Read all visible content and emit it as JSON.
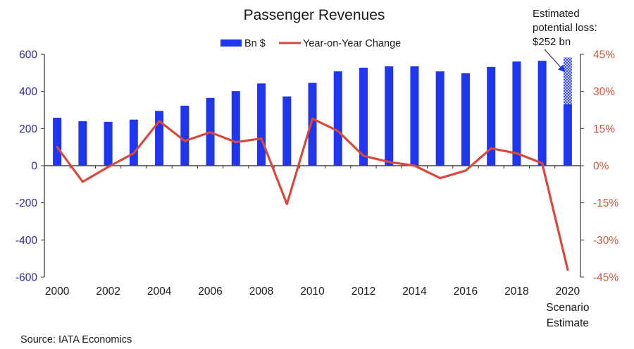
{
  "chart_data": {
    "type": "bar+line",
    "title": "Passenger Revenues",
    "categories": [
      "2000",
      "2001",
      "2002",
      "2003",
      "2004",
      "2005",
      "2006",
      "2007",
      "2008",
      "2009",
      "2010",
      "2011",
      "2012",
      "2013",
      "2014",
      "2015",
      "2016",
      "2017",
      "2018",
      "2019",
      "2020"
    ],
    "series": [
      {
        "name": "Bn $",
        "type": "bar",
        "axis": "left",
        "color": "#1f35f0",
        "values": [
          258,
          240,
          236,
          248,
          295,
          323,
          365,
          402,
          443,
          373,
          446,
          508,
          528,
          535,
          535,
          508,
          498,
          532,
          561,
          565,
          331
        ]
      },
      {
        "name": "Year-on-Year Change",
        "type": "line",
        "axis": "right",
        "unit": "%",
        "color": "#d9483b",
        "values": [
          7.5,
          -6.5,
          -0.5,
          5,
          18,
          10,
          13.5,
          9.5,
          11,
          -15.5,
          19,
          14,
          4,
          1.5,
          0,
          -5,
          -2,
          7,
          5,
          1,
          -42
        ]
      }
    ],
    "estimated_loss": {
      "category": "2020",
      "value": 252,
      "stacked_top": 583,
      "fill": "hatched",
      "annotation_lines": [
        "Estimated",
        "potential loss:",
        "$252 bn"
      ]
    },
    "left_axis": {
      "range": [
        -600,
        600
      ],
      "ticks": [
        600,
        400,
        200,
        0,
        -200,
        -400,
        -600
      ],
      "tick_labels": [
        "600",
        "400",
        "200",
        "0",
        "-200",
        "-400",
        "-600"
      ],
      "color": "#2e2e9e"
    },
    "right_axis": {
      "range": [
        -45,
        45
      ],
      "ticks": [
        45,
        30,
        15,
        0,
        -15,
        -30,
        -45
      ],
      "tick_labels": [
        "45%",
        "30%",
        "15%",
        "0%",
        "-15%",
        "-30%",
        "-45%"
      ],
      "color": "#d0573f"
    },
    "x_tick_labels": [
      "2000",
      "2002",
      "2004",
      "2006",
      "2008",
      "2010",
      "2012",
      "2014",
      "2016",
      "2018",
      "2020"
    ],
    "x_sublabel": [
      "Scenario",
      "Estimate"
    ],
    "legend": {
      "placement": "top-center",
      "items": [
        {
          "label": "Bn $",
          "kind": "bar"
        },
        {
          "label": "Year-on-Year Change",
          "kind": "line"
        }
      ]
    },
    "grid": false
  },
  "source": "Source: IATA Economics"
}
